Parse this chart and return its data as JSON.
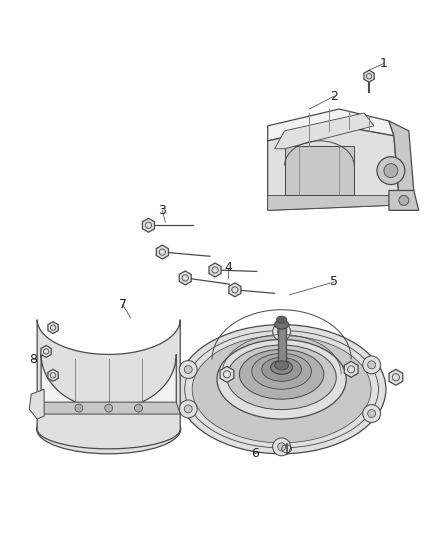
{
  "bg_color": "#ffffff",
  "lc": "#4a4a4a",
  "lc_light": "#888888",
  "fc_light": "#f2f2f2",
  "fc_mid": "#e0e0e0",
  "fc_dark": "#c8c8c8",
  "fc_vdark": "#b0b0b0",
  "fig_width": 4.38,
  "fig_height": 5.33,
  "dpi": 100
}
